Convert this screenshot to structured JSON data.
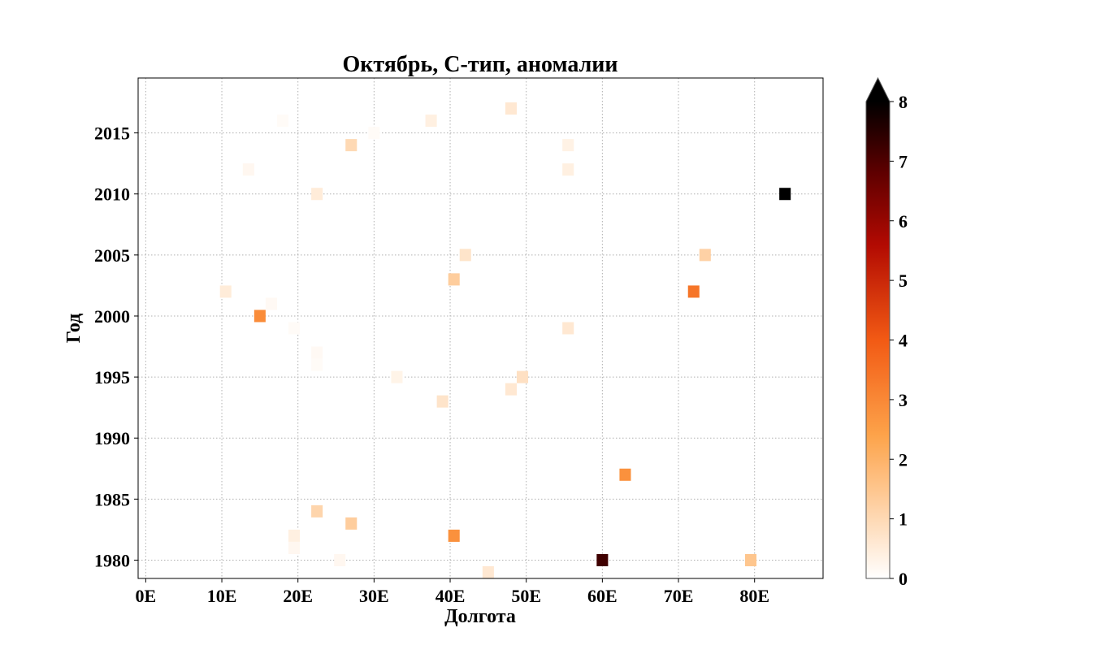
{
  "chart_data": {
    "type": "heatmap",
    "title": "Октябрь, С-тип, аномалии",
    "xlabel": "Долгота",
    "ylabel": "Год",
    "xlim": [
      -1,
      89
    ],
    "ylim": [
      1978.5,
      2019.5
    ],
    "xticks": [
      0,
      10,
      20,
      30,
      40,
      50,
      60,
      70,
      80
    ],
    "xtick_labels": [
      "0E",
      "10E",
      "20E",
      "30E",
      "40E",
      "50E",
      "60E",
      "70E",
      "80E"
    ],
    "yticks": [
      1980,
      1985,
      1990,
      1995,
      2000,
      2005,
      2010,
      2015
    ],
    "ytick_labels": [
      "1980",
      "1985",
      "1990",
      "1995",
      "2000",
      "2005",
      "2010",
      "2015"
    ],
    "grid": true,
    "colorbar": {
      "min": 0,
      "max": 8,
      "ticks": [
        0,
        1,
        2,
        3,
        4,
        5,
        6,
        7,
        8
      ],
      "tick_labels": [
        "0",
        "1",
        "2",
        "3",
        "4",
        "5",
        "6",
        "7",
        "8"
      ],
      "extend": "max",
      "colormap": "gist_heat_r"
    },
    "cell_size": {
      "lon": 1.5,
      "year": 1
    },
    "cells": [
      {
        "lon": 48.0,
        "year": 2017,
        "value": 0.6
      },
      {
        "lon": 18.0,
        "year": 2016,
        "value": 0.1
      },
      {
        "lon": 37.5,
        "year": 2016,
        "value": 0.4
      },
      {
        "lon": 30.0,
        "year": 2015,
        "value": 0.1
      },
      {
        "lon": 27.0,
        "year": 2014,
        "value": 1.0
      },
      {
        "lon": 55.5,
        "year": 2014,
        "value": 0.35
      },
      {
        "lon": 13.5,
        "year": 2012,
        "value": 0.2
      },
      {
        "lon": 55.5,
        "year": 2012,
        "value": 0.4
      },
      {
        "lon": 22.5,
        "year": 2010,
        "value": 0.5
      },
      {
        "lon": 84.0,
        "year": 2010,
        "value": 8.5
      },
      {
        "lon": 42.0,
        "year": 2005,
        "value": 0.7
      },
      {
        "lon": 73.5,
        "year": 2005,
        "value": 1.2
      },
      {
        "lon": 40.5,
        "year": 2003,
        "value": 1.3
      },
      {
        "lon": 10.5,
        "year": 2002,
        "value": 0.5
      },
      {
        "lon": 72.0,
        "year": 2002,
        "value": 3.4
      },
      {
        "lon": 16.5,
        "year": 2001,
        "value": 0.15
      },
      {
        "lon": 15.0,
        "year": 2000,
        "value": 2.9
      },
      {
        "lon": 19.5,
        "year": 1999,
        "value": 0.1
      },
      {
        "lon": 55.5,
        "year": 1999,
        "value": 0.6
      },
      {
        "lon": 22.5,
        "year": 1997,
        "value": 0.15
      },
      {
        "lon": 22.5,
        "year": 1996,
        "value": 0.1
      },
      {
        "lon": 33.0,
        "year": 1995,
        "value": 0.3
      },
      {
        "lon": 49.5,
        "year": 1995,
        "value": 0.8
      },
      {
        "lon": 48.0,
        "year": 1994,
        "value": 0.6
      },
      {
        "lon": 39.0,
        "year": 1993,
        "value": 0.7
      },
      {
        "lon": 63.0,
        "year": 1987,
        "value": 2.8
      },
      {
        "lon": 22.5,
        "year": 1984,
        "value": 1.1
      },
      {
        "lon": 27.0,
        "year": 1983,
        "value": 1.3
      },
      {
        "lon": 19.5,
        "year": 1982,
        "value": 0.4
      },
      {
        "lon": 40.5,
        "year": 1982,
        "value": 2.8
      },
      {
        "lon": 19.5,
        "year": 1981,
        "value": 0.2
      },
      {
        "lon": 25.5,
        "year": 1980,
        "value": 0.2
      },
      {
        "lon": 60.0,
        "year": 1980,
        "value": 7.2
      },
      {
        "lon": 79.5,
        "year": 1980,
        "value": 1.5
      },
      {
        "lon": 45.0,
        "year": 1979,
        "value": 0.6
      }
    ]
  }
}
